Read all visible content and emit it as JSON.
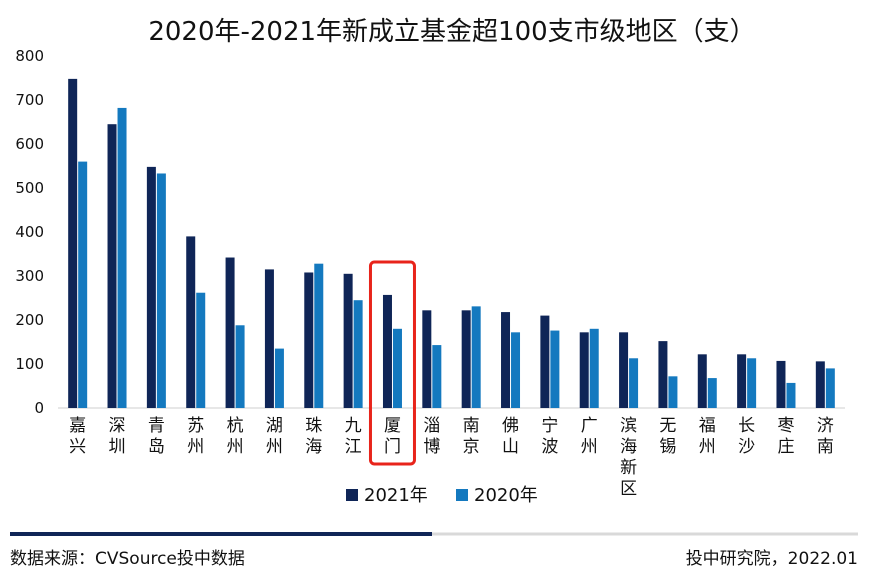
{
  "chart_data": {
    "type": "bar",
    "title": "2020年-2021年新成立基金超100支市级地区（支）",
    "categories": [
      "嘉兴",
      "深圳",
      "青岛",
      "苏州",
      "杭州",
      "湖州",
      "珠海",
      "九江",
      "厦门",
      "淄博",
      "南京",
      "佛山",
      "宁波",
      "广州",
      "滨海新区",
      "无锡",
      "福州",
      "长沙",
      "枣庄",
      "济南"
    ],
    "series": [
      {
        "name": "2021年",
        "color": "#0f2557",
        "values": [
          748,
          645,
          548,
          390,
          342,
          315,
          308,
          305,
          257,
          222,
          222,
          218,
          210,
          172,
          172,
          152,
          122,
          122,
          107,
          106
        ]
      },
      {
        "name": "2020年",
        "color": "#1479bf",
        "values": [
          560,
          682,
          533,
          262,
          188,
          135,
          328,
          245,
          180,
          143,
          231,
          172,
          176,
          180,
          113,
          72,
          68,
          113,
          57,
          90
        ]
      }
    ],
    "ylim": [
      0,
      800
    ],
    "yticks": [
      0,
      100,
      200,
      300,
      400,
      500,
      600,
      700,
      800
    ],
    "grid": false,
    "legend_position": "bottom-center",
    "highlight_category": "厦门",
    "highlight_color": "#e8241b"
  },
  "footer": {
    "source": "数据来源：CVSource投中数据",
    "credit": "投中研究院，2022.01"
  }
}
